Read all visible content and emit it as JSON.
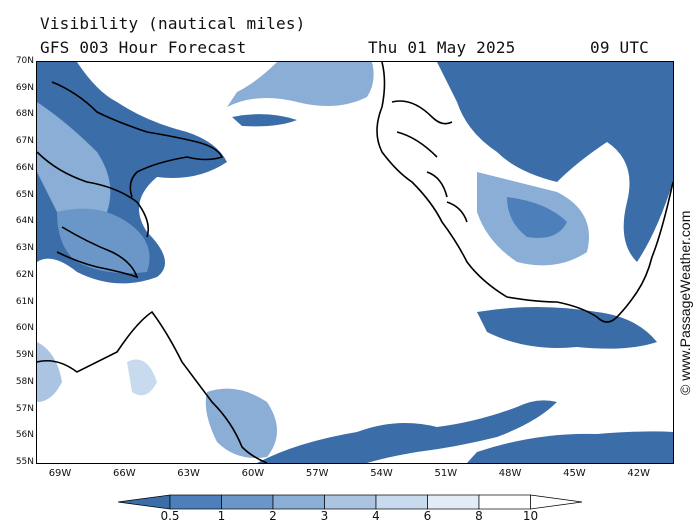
{
  "header": {
    "title": "Visibility (nautical miles)",
    "subtitle": "GFS 003 Hour Forecast",
    "date": "Thu 01 May 2025",
    "time": "09 UTC"
  },
  "watermark": "© www.PassageWeather.com",
  "lat_labels": [
    "70N",
    "69N",
    "68N",
    "67N",
    "66N",
    "65N",
    "64N",
    "63N",
    "62N",
    "61N",
    "60N",
    "59N",
    "58N",
    "57N",
    "56N",
    "55N"
  ],
  "lon_labels": [
    "69W",
    "66W",
    "63W",
    "60W",
    "57W",
    "54W",
    "51W",
    "48W",
    "45W",
    "42W"
  ],
  "colorbar": {
    "labels": [
      "0.5",
      "1",
      "2",
      "3",
      "4",
      "6",
      "8",
      "10"
    ],
    "colors": [
      "#3b6ea8",
      "#4d80bb",
      "#6b96c8",
      "#8aaed5",
      "#aac4e2",
      "#c8daee",
      "#e2ecf7",
      "#ffffff"
    ]
  },
  "colors": {
    "low_visibility": "#3b6ea8",
    "medium_visibility": "#8aaed5",
    "high_visibility": "#ffffff",
    "coastline": "#000000"
  }
}
